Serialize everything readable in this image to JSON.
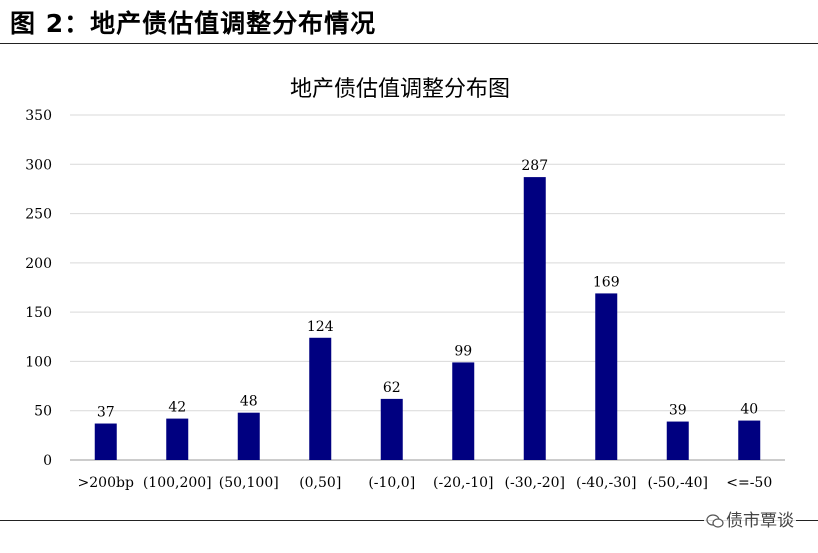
{
  "figure_title": "图  2：地产债估值调整分布情况",
  "watermark": "债市覃谈",
  "colors": {
    "bar": "#000080",
    "grid": "#d9d9d9",
    "axis": "#999999"
  },
  "chart_data": {
    "type": "bar",
    "title": "地产债估值调整分布图",
    "xlabel": "",
    "ylabel": "",
    "categories": [
      ">200bp",
      "(100,200]",
      "(50,100]",
      "(0,50]",
      "(-10,0]",
      "(-20,-10]",
      "(-30,-20]",
      "(-40,-30]",
      "(-50,-40]",
      "<=-50"
    ],
    "values": [
      37,
      42,
      48,
      124,
      62,
      99,
      287,
      169,
      39,
      40
    ],
    "ylim": [
      0,
      350
    ],
    "yticks": [
      0,
      50,
      100,
      150,
      200,
      250,
      300,
      350
    ],
    "grid": true,
    "data_labels": true
  }
}
